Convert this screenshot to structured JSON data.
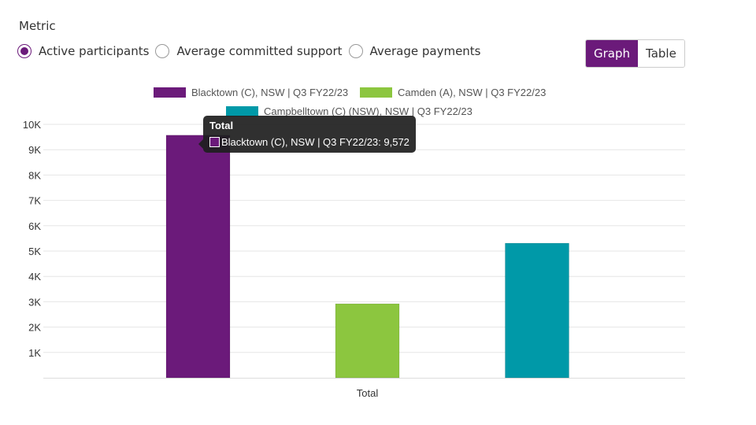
{
  "metric": {
    "label": "Metric",
    "options": [
      {
        "label": "Active participants",
        "checked": true
      },
      {
        "label": "Average committed support",
        "checked": false
      },
      {
        "label": "Average payments",
        "checked": false
      }
    ]
  },
  "view_toggle": {
    "graph": "Graph",
    "table": "Table",
    "active": "Graph"
  },
  "tooltip": {
    "title": "Total",
    "text": "Blacktown (C), NSW | Q3 FY22/23: 9,572"
  },
  "chart_data": {
    "type": "bar",
    "categories": [
      "Total"
    ],
    "series": [
      {
        "name": "Blacktown (C), NSW | Q3 FY22/23",
        "values": [
          9572
        ],
        "color": "#6b1a7a"
      },
      {
        "name": "Camden (A), NSW | Q3 FY22/23",
        "values": [
          2920
        ],
        "color": "#8cc63f"
      },
      {
        "name": "Campbelltown (C) (NSW), NSW | Q3 FY22/23",
        "values": [
          5310
        ],
        "color": "#0099a8"
      }
    ],
    "yticks": [
      "1K",
      "2K",
      "3K",
      "4K",
      "5K",
      "6K",
      "7K",
      "8K",
      "9K",
      "10K"
    ],
    "ylim": [
      0,
      10000
    ],
    "grid": true,
    "legend": "top"
  }
}
